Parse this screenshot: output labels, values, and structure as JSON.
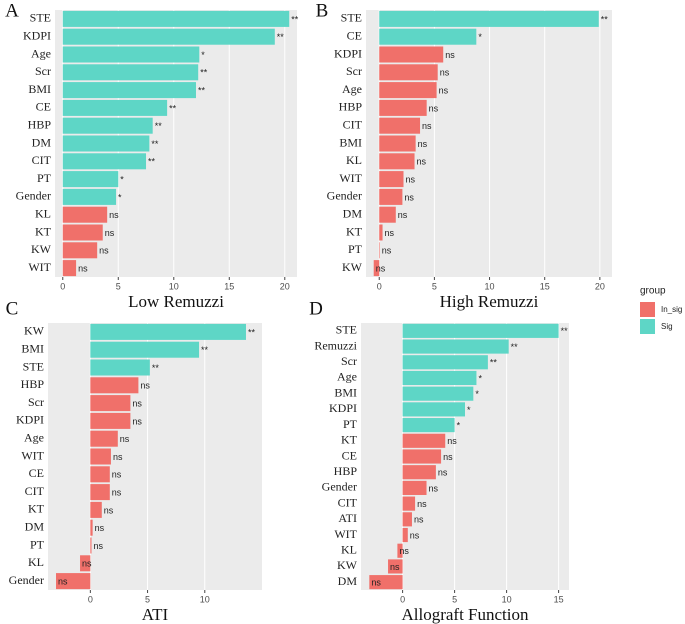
{
  "chart_data": [
    {
      "type": "bar",
      "orientation": "horizontal",
      "panel_label": "A",
      "xlabel": "Low Remuzzi",
      "categories": [
        "STE",
        "KDPI",
        "Age",
        "Scr",
        "BMI",
        "CE",
        "HBP",
        "DM",
        "CIT",
        "PT",
        "Gender",
        "KL",
        "KT",
        "KW",
        "WIT"
      ],
      "values": [
        20.4,
        19.1,
        12.3,
        12.2,
        12.0,
        9.4,
        8.1,
        7.8,
        7.5,
        5.0,
        4.8,
        4.0,
        3.6,
        3.1,
        1.2
      ],
      "groups": [
        "Sig",
        "Sig",
        "Sig",
        "Sig",
        "Sig",
        "Sig",
        "Sig",
        "Sig",
        "Sig",
        "Sig",
        "Sig",
        "In_sig",
        "In_sig",
        "In_sig",
        "In_sig"
      ],
      "annotations": [
        "**",
        "**",
        "*",
        "**",
        "**",
        "**",
        "**",
        "**",
        "**",
        "*",
        "*",
        "ns",
        "ns",
        "ns",
        "ns"
      ],
      "xlim": [
        -0.7,
        21.1
      ],
      "xticks": [
        0,
        5,
        10,
        15,
        20
      ],
      "grid": true
    },
    {
      "type": "bar",
      "orientation": "horizontal",
      "panel_label": "B",
      "xlabel": "High Remuzzi",
      "categories": [
        "STE",
        "CE",
        "KDPI",
        "Scr",
        "Age",
        "HBP",
        "CIT",
        "BMI",
        "KL",
        "WIT",
        "Gender",
        "DM",
        "KT",
        "PT",
        "KW"
      ],
      "values": [
        19.9,
        8.8,
        5.8,
        5.3,
        5.2,
        4.3,
        3.7,
        3.3,
        3.2,
        2.2,
        2.1,
        1.5,
        0.3,
        0.05,
        -0.5
      ],
      "groups": [
        "Sig",
        "Sig",
        "In_sig",
        "In_sig",
        "In_sig",
        "In_sig",
        "In_sig",
        "In_sig",
        "In_sig",
        "In_sig",
        "In_sig",
        "In_sig",
        "In_sig",
        "In_sig",
        "In_sig"
      ],
      "annotations": [
        "**",
        "*",
        "ns",
        "ns",
        "ns",
        "ns",
        "ns",
        "ns",
        "ns",
        "ns",
        "ns",
        "ns",
        "ns",
        "ns",
        "ns"
      ],
      "xlim": [
        -1.2,
        21.1
      ],
      "xticks": [
        0,
        5,
        10,
        15,
        20
      ],
      "grid": true
    },
    {
      "type": "bar",
      "orientation": "horizontal",
      "panel_label": "C",
      "xlabel": "ATI",
      "categories": [
        "KW",
        "BMI",
        "STE",
        "HBP",
        "Scr",
        "KDPI",
        "Age",
        "WIT",
        "CE",
        "CIT",
        "KT",
        "DM",
        "PT",
        "KL",
        "Gender"
      ],
      "values": [
        13.6,
        9.5,
        5.2,
        4.2,
        3.5,
        3.5,
        2.4,
        1.8,
        1.7,
        1.7,
        1.0,
        0.2,
        0.1,
        -0.9,
        -3.0
      ],
      "groups": [
        "Sig",
        "Sig",
        "Sig",
        "In_sig",
        "In_sig",
        "In_sig",
        "In_sig",
        "In_sig",
        "In_sig",
        "In_sig",
        "In_sig",
        "In_sig",
        "In_sig",
        "In_sig",
        "In_sig"
      ],
      "annotations": [
        "**",
        "**",
        "**",
        "ns",
        "ns",
        "ns",
        "ns",
        "ns",
        "ns",
        "ns",
        "ns",
        "ns",
        "ns",
        "ns",
        "ns"
      ],
      "xlim": [
        -3.7,
        15
      ],
      "xticks": [
        0,
        5,
        10
      ],
      "grid": true
    },
    {
      "type": "bar",
      "orientation": "horizontal",
      "panel_label": "D",
      "xlabel": "Allograft Function",
      "categories": [
        "STE",
        "Remuzzi",
        "Scr",
        "Age",
        "BMI",
        "KDPI",
        "PT",
        "KT",
        "CE",
        "HBP",
        "Gender",
        "CIT",
        "ATI",
        "WIT",
        "KL",
        "KW",
        "DM"
      ],
      "values": [
        15.0,
        10.2,
        8.2,
        7.1,
        6.8,
        6.0,
        5.0,
        4.1,
        3.7,
        3.2,
        2.3,
        1.2,
        0.9,
        0.5,
        -0.5,
        -1.4,
        -3.2
      ],
      "groups": [
        "Sig",
        "Sig",
        "Sig",
        "Sig",
        "Sig",
        "Sig",
        "Sig",
        "In_sig",
        "In_sig",
        "In_sig",
        "In_sig",
        "In_sig",
        "In_sig",
        "In_sig",
        "In_sig",
        "In_sig",
        "In_sig"
      ],
      "annotations": [
        "**",
        "**",
        "**",
        "*",
        "*",
        "*",
        "*",
        "ns",
        "ns",
        "ns",
        "ns",
        "ns",
        "ns",
        "ns",
        "ns",
        "ns",
        "ns"
      ],
      "xlim": [
        -4,
        16
      ],
      "xticks": [
        0,
        5,
        10,
        15
      ],
      "grid": true
    }
  ],
  "legend": {
    "title": "group",
    "entries": [
      {
        "name": "In_sig",
        "color": "#F0706A"
      },
      {
        "name": "Sig",
        "color": "#5ED6C6"
      }
    ]
  }
}
